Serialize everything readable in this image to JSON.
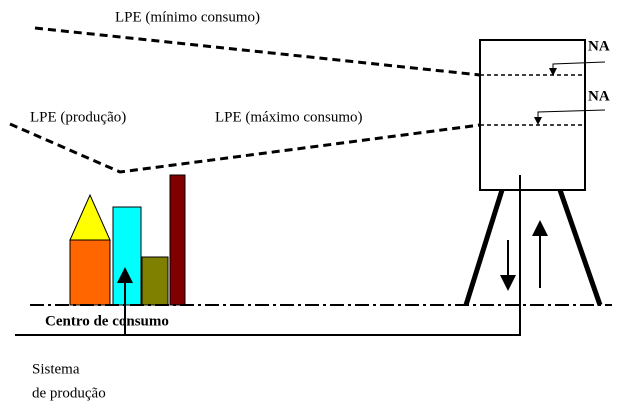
{
  "labels": {
    "lpe_min": "LPE (mínimo consumo)",
    "na_top": "NA",
    "na_bottom": "NA",
    "lpe_prod": "LPE (produção)",
    "lpe_max": "LPE (máximo consumo)",
    "centro": "Centro de consumo",
    "sistema_1": "Sistema",
    "sistema_2": "de produção"
  }
}
